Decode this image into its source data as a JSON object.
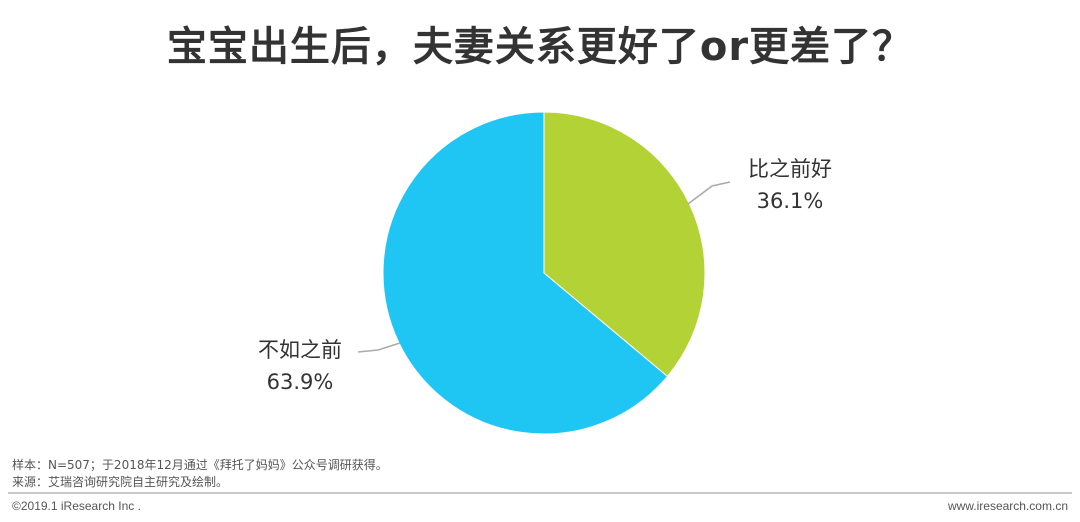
{
  "chart_data": {
    "type": "pie",
    "title": "宝宝出生后，夫妻关系更好了or更差了？",
    "slices": [
      {
        "label": "比之前好",
        "value": 36.1,
        "display": "36.1%",
        "color": "#b2d235"
      },
      {
        "label": "不如之前",
        "value": 63.9,
        "display": "63.9%",
        "color": "#1fc6f3"
      }
    ],
    "start_angle": "12 o'clock",
    "direction": "clockwise",
    "label_leader_color": "#aaaaaa"
  },
  "notes": {
    "sample": "样本：N=507；于2018年12月通过《拜托了妈妈》公众号调研获得。",
    "source": "来源：艾瑞咨询研究院自主研究及绘制。"
  },
  "footer": {
    "copyright": "©2019.1 iResearch Inc .",
    "website": "www.iresearch.com.cn"
  }
}
